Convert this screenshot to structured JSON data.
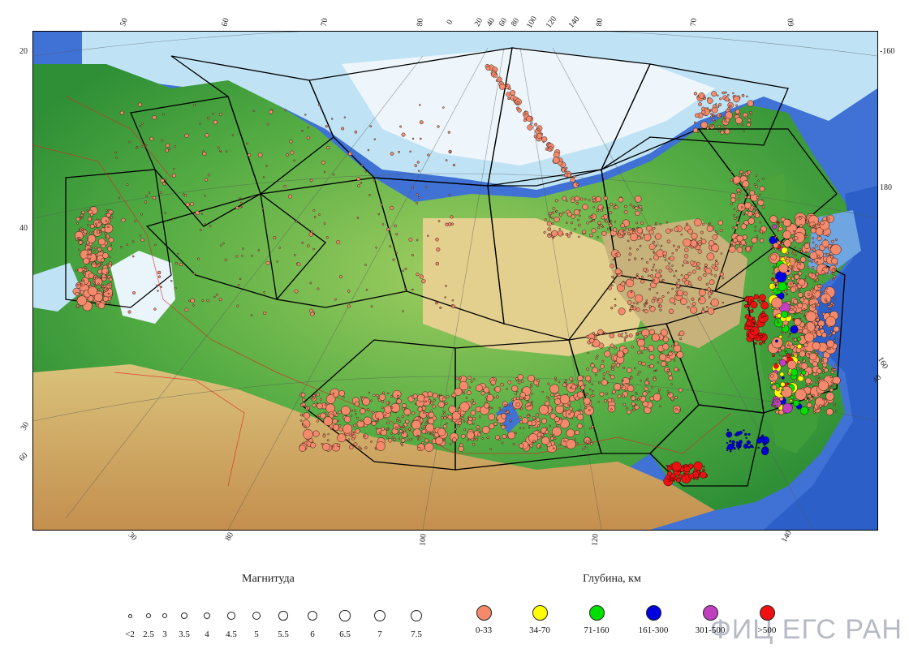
{
  "map": {
    "watermark": "ФИЦ ЕГС РАН",
    "colors": {
      "sea": "#3a6fd1",
      "shelf": "#bfe3f5",
      "ice": "#eef6fb",
      "lowland": "#3f9e3a",
      "upland": "#a8d16b",
      "plateau": "#e3c98a",
      "mountain": "#c99a5a",
      "event": "#f4896b",
      "zone": "#000000",
      "border": "#e02020"
    }
  },
  "grid_labels": {
    "top": [
      "50",
      "60",
      "70",
      "80",
      "0",
      "20",
      "40",
      "60",
      "80",
      "100",
      "120",
      "140",
      "80",
      "70",
      "60"
    ],
    "left": [
      "20",
      "40",
      "30",
      "60"
    ],
    "right": [
      "-160",
      "180",
      "160",
      "40"
    ],
    "bottom": [
      "30",
      "80",
      "100",
      "120",
      "140"
    ]
  },
  "legend": {
    "magnitude_title": "Магнитуда",
    "depth_title": "Глубина, км",
    "magnitudes": [
      "<2",
      "2.5",
      "3",
      "3.5",
      "4",
      "4.5",
      "5",
      "5.5",
      "6",
      "6.5",
      "7",
      "7.5"
    ],
    "depths": [
      {
        "label": "0-33",
        "color": "#f4896b"
      },
      {
        "label": "34-70",
        "color": "#ffff00"
      },
      {
        "label": "71-160",
        "color": "#00e000"
      },
      {
        "label": "161-300",
        "color": "#0000e0"
      },
      {
        "label": "301-500",
        "color": "#c040c0"
      },
      {
        "label": ">500",
        "color": "#ee1111"
      }
    ]
  }
}
